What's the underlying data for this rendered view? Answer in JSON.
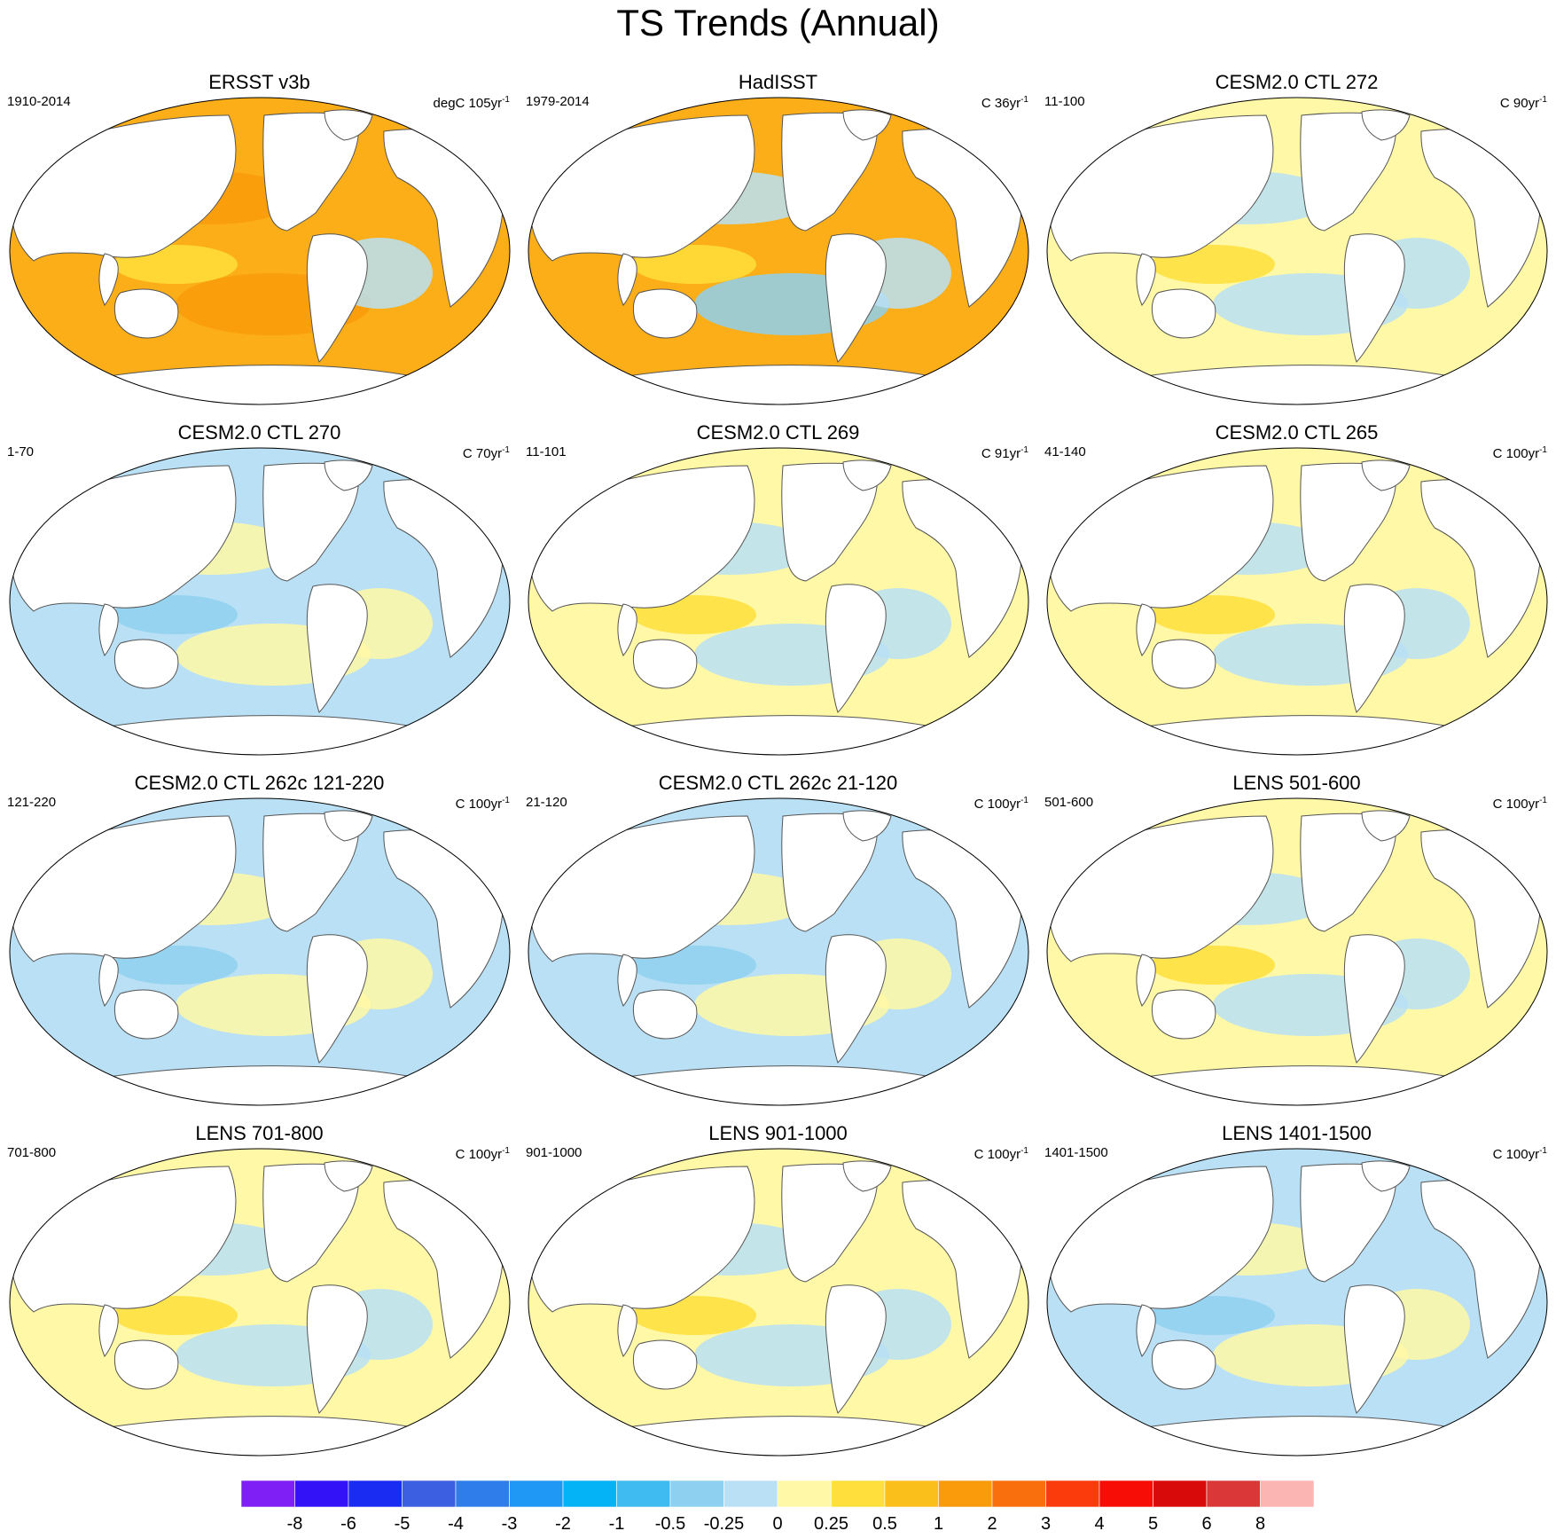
{
  "title": "TS Trends (Annual)",
  "colors": {
    "ocean_warm": "#FBAE17",
    "ocean_warm_strong": "#F99B0A",
    "ocean_neutral_pos": "#FFF8A6",
    "ocean_mid_pos": "#FFDF3B",
    "ocean_neg": "#B9E0F4",
    "ocean_neg_mid": "#8ED0EF",
    "ocean_neg_strong": "#3FBBF1",
    "land": "#FFFFFF",
    "coast": "#555555"
  },
  "panels": [
    {
      "title": "ERSST v3b",
      "period": "1910-2014",
      "units": "degC 105yr",
      "exp": "-1",
      "dominant": "warm"
    },
    {
      "title": "HadISST",
      "period": "1979-2014",
      "units": "C 36yr",
      "exp": "-1",
      "dominant": "mixed_warm"
    },
    {
      "title": "CESM2.0 CTL 272",
      "period": "11-100",
      "units": "C 90yr",
      "exp": "-1",
      "dominant": "neutral"
    },
    {
      "title": "CESM2.0 CTL 270",
      "period": "1-70",
      "units": "C 70yr",
      "exp": "-1",
      "dominant": "cool"
    },
    {
      "title": "CESM2.0 CTL 269",
      "period": "11-101",
      "units": "C 91yr",
      "exp": "-1",
      "dominant": "neutral"
    },
    {
      "title": "CESM2.0 CTL 265",
      "period": "41-140",
      "units": "C 100yr",
      "exp": "-1",
      "dominant": "neutral"
    },
    {
      "title": "CESM2.0 CTL 262c 121-220",
      "period": "121-220",
      "units": "C 100yr",
      "exp": "-1",
      "dominant": "cool"
    },
    {
      "title": "CESM2.0 CTL 262c 21-120",
      "period": "21-120",
      "units": "C 100yr",
      "exp": "-1",
      "dominant": "cool"
    },
    {
      "title": "LENS 501-600",
      "period": "501-600",
      "units": "C 100yr",
      "exp": "-1",
      "dominant": "neutral"
    },
    {
      "title": "LENS 701-800",
      "period": "701-800",
      "units": "C 100yr",
      "exp": "-1",
      "dominant": "neutral"
    },
    {
      "title": "LENS 901-1000",
      "period": "901-1000",
      "units": "C 100yr",
      "exp": "-1",
      "dominant": "neutral"
    },
    {
      "title": "LENS 1401-1500",
      "period": "1401-1500",
      "units": "C 100yr",
      "exp": "-1",
      "dominant": "cool"
    }
  ],
  "colorbar": {
    "colors": [
      "#7F1FF5",
      "#3412F7",
      "#1A2CF2",
      "#3B5FE0",
      "#2E7DEB",
      "#1E97F5",
      "#04B3F5",
      "#3FBBF1",
      "#8ED0EF",
      "#B9E0F4",
      "#FFF8A6",
      "#FFDF3B",
      "#FBBF1C",
      "#F99B0A",
      "#FA6F0D",
      "#FB3B0B",
      "#F70D05",
      "#D80A0A",
      "#DA3838",
      "#FBB5B3"
    ],
    "labels": [
      "-8",
      "-6",
      "-5",
      "-4",
      "-3",
      "-2",
      "-1",
      "-0.5",
      "-0.25",
      "0",
      "0.25",
      "0.5",
      "1",
      "2",
      "3",
      "4",
      "5",
      "6",
      "8"
    ]
  }
}
